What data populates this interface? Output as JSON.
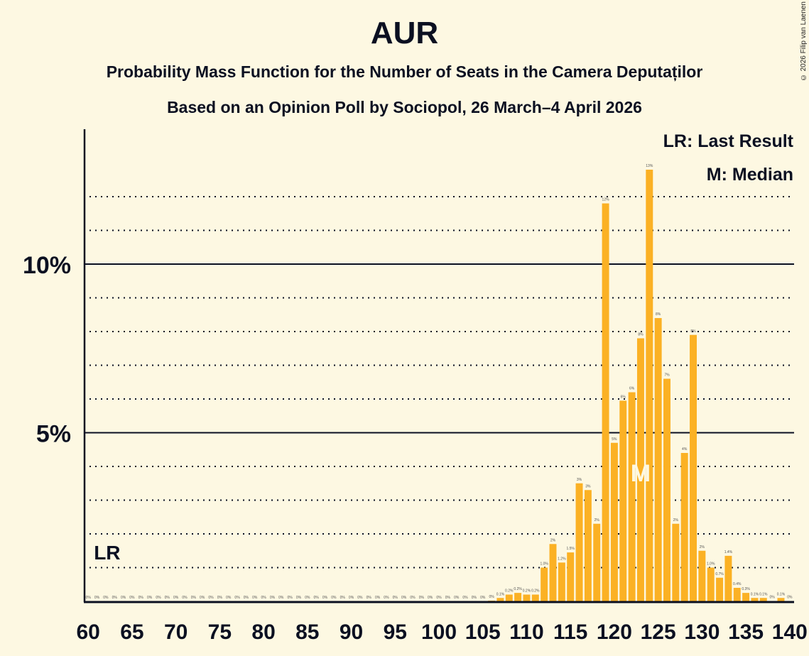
{
  "header": {
    "title": "AUR",
    "subtitle": "Probability Mass Function for the Number of Seats in the Camera Deputaților",
    "subtitle2": "Based on an Opinion Poll by Sociopol, 26 March–4 April 2026",
    "copyright": "© 2026 Filip van Laenen"
  },
  "legend": {
    "last_result": "LR: Last Result",
    "median": "M: Median"
  },
  "markers": {
    "lr_label": "LR",
    "lr_seat": 62,
    "median_label": "M",
    "median_seat": 123
  },
  "colors": {
    "bar": "#fbb124",
    "background": "#fdf8e2",
    "text": "#0b1021"
  },
  "chart_data": {
    "type": "bar",
    "title": "AUR",
    "xlabel": "",
    "ylabel": "",
    "xlim": [
      60,
      140
    ],
    "ylim": [
      0,
      14
    ],
    "x_ticks": [
      60,
      65,
      70,
      75,
      80,
      85,
      90,
      95,
      100,
      105,
      110,
      115,
      120,
      125,
      130,
      135,
      140
    ],
    "y_ticks": [
      "5%",
      "10%"
    ],
    "grid": "dotted at every 1%, solid at 5% and 10%",
    "categories": [
      60,
      61,
      62,
      63,
      64,
      65,
      66,
      67,
      68,
      69,
      70,
      71,
      72,
      73,
      74,
      75,
      76,
      77,
      78,
      79,
      80,
      81,
      82,
      83,
      84,
      85,
      86,
      87,
      88,
      89,
      90,
      91,
      92,
      93,
      94,
      95,
      96,
      97,
      98,
      99,
      100,
      101,
      102,
      103,
      104,
      105,
      106,
      107,
      108,
      109,
      110,
      111,
      112,
      113,
      114,
      115,
      116,
      117,
      118,
      119,
      120,
      121,
      122,
      123,
      124,
      125,
      126,
      127,
      128,
      129,
      130,
      131,
      132,
      133,
      134,
      135,
      136,
      137,
      138,
      139,
      140
    ],
    "values": [
      0,
      0,
      0,
      0,
      0,
      0,
      0,
      0,
      0,
      0,
      0,
      0,
      0,
      0,
      0,
      0,
      0,
      0,
      0,
      0,
      0,
      0,
      0,
      0,
      0,
      0,
      0,
      0,
      0,
      0,
      0,
      0,
      0,
      0,
      0,
      0,
      0,
      0,
      0,
      0,
      0,
      0,
      0,
      0,
      0,
      0,
      0.02,
      0.1,
      0.2,
      0.25,
      0.2,
      0.2,
      1.0,
      1.7,
      1.15,
      1.45,
      3.5,
      3.3,
      2.3,
      11.8,
      4.7,
      5.95,
      6.2,
      7.8,
      12.8,
      8.4,
      6.6,
      2.3,
      4.4,
      7.9,
      1.5,
      1.0,
      0.7,
      1.35,
      0.4,
      0.25,
      0.1,
      0.1,
      0.01,
      0.1,
      0.01
    ],
    "labels": [
      "0%",
      "0%",
      "0%",
      "0%",
      "0%",
      "0%",
      "0%",
      "0%",
      "0%",
      "0%",
      "0%",
      "0%",
      "0%",
      "0%",
      "0%",
      "0%",
      "0%",
      "0%",
      "0%",
      "0%",
      "0%",
      "0%",
      "0%",
      "0%",
      "0%",
      "0%",
      "0%",
      "0%",
      "0%",
      "0%",
      "0%",
      "0%",
      "0%",
      "0%",
      "0%",
      "0%",
      "0%",
      "0%",
      "0%",
      "0%",
      "0%",
      "0%",
      "0%",
      "0%",
      "0%",
      "0%",
      "0%",
      "0.1%",
      "0.2%",
      "0.2%",
      "0.2%",
      "0.2%",
      "1.0%",
      "2%",
      "1.2%",
      "1.5%",
      "3%",
      "3%",
      "2%",
      "12%",
      "5%",
      "6%",
      "6%",
      "8%",
      "13%",
      "8%",
      "7%",
      "2%",
      "4%",
      "8%",
      "2%",
      "1.0%",
      "0.7%",
      "1.4%",
      "0.4%",
      "0.3%",
      "0.1%",
      "0.1%",
      "0%",
      "0.1%",
      "0%"
    ]
  }
}
